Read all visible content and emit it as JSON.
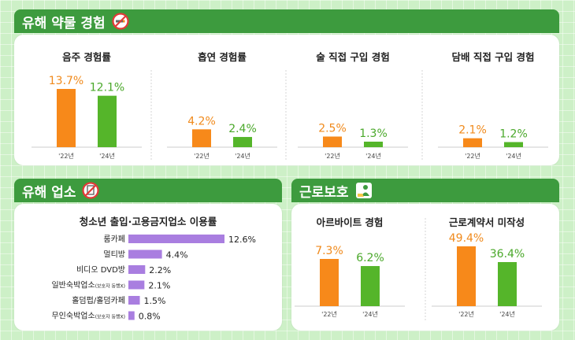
{
  "sections": {
    "drug": {
      "title": "유해 약물 경험",
      "icon": "no-smoking-icon"
    },
    "venue": {
      "title": "유해 업소",
      "icon": "no-entry-icon"
    },
    "labor": {
      "title": "근로보호",
      "icon": "worker-icon"
    }
  },
  "colors": {
    "orange": "#f7891a",
    "green": "#55b52a",
    "purple": "#a97ee0",
    "header": "#3d9b3e"
  },
  "chart_data": [
    {
      "type": "bar",
      "title": "음주 경험률",
      "categories": [
        "'22년",
        "'24년"
      ],
      "values": [
        13.7,
        12.1
      ],
      "labels": [
        "13.7%",
        "12.1%"
      ]
    },
    {
      "type": "bar",
      "title": "흡연 경험률",
      "categories": [
        "'22년",
        "'24년"
      ],
      "values": [
        4.2,
        2.4
      ],
      "labels": [
        "4.2%",
        "2.4%"
      ]
    },
    {
      "type": "bar",
      "title": "술 직접 구입 경험",
      "categories": [
        "'22년",
        "'24년"
      ],
      "values": [
        2.5,
        1.3
      ],
      "labels": [
        "2.5%",
        "1.3%"
      ]
    },
    {
      "type": "bar",
      "title": "담배 직접 구입 경험",
      "categories": [
        "'22년",
        "'24년"
      ],
      "values": [
        2.1,
        1.2
      ],
      "labels": [
        "2.1%",
        "1.2%"
      ]
    },
    {
      "type": "bar",
      "orientation": "horizontal",
      "title": "청소년 출입·고용금지업소 이용률",
      "categories": [
        {
          "main": "룸카페",
          "note": ""
        },
        {
          "main": "멀티방",
          "note": ""
        },
        {
          "main": "비디오 DVD방",
          "note": ""
        },
        {
          "main": "일반숙박업소",
          "note": "(보호자 동행X)"
        },
        {
          "main": "홀덤펍/홀덤카페",
          "note": ""
        },
        {
          "main": "무인숙박업소",
          "note": "(보호자 동행X)"
        }
      ],
      "values": [
        12.6,
        4.4,
        2.2,
        2.1,
        1.5,
        0.8
      ],
      "labels": [
        "12.6%",
        "4.4%",
        "2.2%",
        "2.1%",
        "1.5%",
        "0.8%"
      ]
    },
    {
      "type": "bar",
      "title": "아르바이트 경험",
      "categories": [
        "'22년",
        "'24년"
      ],
      "values": [
        7.3,
        6.2
      ],
      "labels": [
        "7.3%",
        "6.2%"
      ]
    },
    {
      "type": "bar",
      "title": "근로계약서 미작성",
      "categories": [
        "'22년",
        "'24년"
      ],
      "values": [
        49.4,
        36.4
      ],
      "labels": [
        "49.4%",
        "36.4%"
      ]
    }
  ]
}
